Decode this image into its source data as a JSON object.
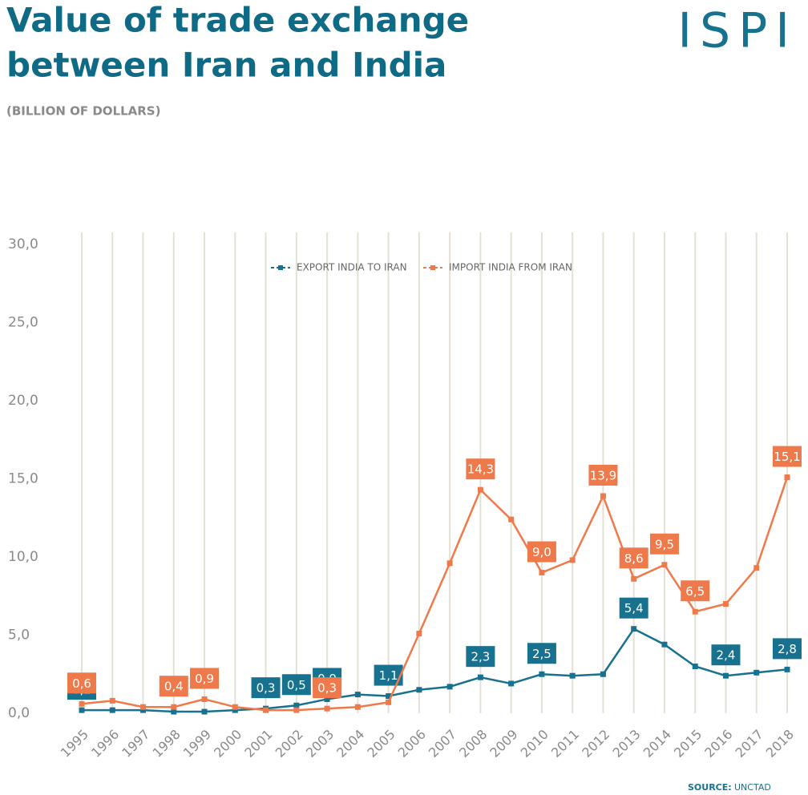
{
  "chart_data": {
    "type": "line",
    "title": [
      "Value of trade exchange",
      "between Iran and India"
    ],
    "subtitle": "(BILLION OF DOLLARS)",
    "logo": "ISPI",
    "source_label": "SOURCE:",
    "source": "UNCTAD",
    "categories": [
      "1995",
      "1996",
      "1997",
      "1998",
      "1999",
      "2000",
      "2001",
      "2002",
      "2003",
      "2004",
      "2005",
      "2006",
      "2007",
      "2008",
      "2009",
      "2010",
      "2011",
      "2012",
      "2013",
      "2014",
      "2015",
      "2016",
      "2017",
      "2018"
    ],
    "series": [
      {
        "name": "EXPORT INDIA TO IRAN",
        "color": "#17718f",
        "values": [
          0.2,
          0.2,
          0.2,
          0.1,
          0.1,
          0.2,
          0.3,
          0.5,
          0.9,
          1.2,
          1.1,
          1.5,
          1.7,
          2.3,
          1.9,
          2.5,
          2.4,
          2.5,
          5.4,
          4.4,
          3.0,
          2.4,
          2.6,
          2.8
        ],
        "value_labels": [
          "0,2",
          null,
          null,
          null,
          null,
          null,
          "0,3",
          "0,5",
          "0,9",
          null,
          "1,1",
          null,
          null,
          "2,3",
          null,
          "2,5",
          null,
          null,
          "5,4",
          null,
          null,
          "2,4",
          null,
          "2,8"
        ]
      },
      {
        "name": "IMPORT INDIA FROM IRAN",
        "color": "#ee7a4b",
        "values": [
          0.6,
          0.8,
          0.4,
          0.4,
          0.9,
          0.4,
          0.2,
          0.2,
          0.3,
          0.4,
          0.7,
          5.1,
          9.6,
          14.3,
          12.4,
          9.0,
          9.8,
          13.9,
          8.6,
          9.5,
          6.5,
          7.0,
          9.3,
          15.1
        ],
        "value_labels": [
          "0,6",
          null,
          null,
          "0,4",
          "0,9",
          null,
          null,
          null,
          "0,3",
          null,
          null,
          null,
          null,
          "14,3",
          null,
          "9,0",
          null,
          "13,9",
          "8,6",
          "9,5",
          "6,5",
          null,
          null,
          "15,1"
        ]
      }
    ],
    "ylim": [
      0,
      30
    ],
    "yticks": [
      {
        "value": 0,
        "label": "0,0"
      },
      {
        "value": 5,
        "label": "5,0"
      },
      {
        "value": 10,
        "label": "10,0"
      },
      {
        "value": 15,
        "label": "15,0"
      },
      {
        "value": 20,
        "label": "20,0"
      },
      {
        "value": 25,
        "label": "25,0"
      },
      {
        "value": 30,
        "label": "30,0"
      }
    ],
    "grid": true
  }
}
